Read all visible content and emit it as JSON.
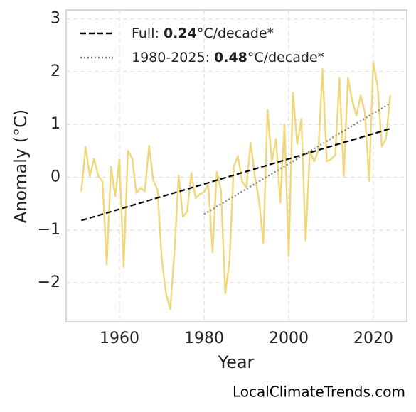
{
  "chart_data": {
    "type": "line",
    "xlabel": "Year",
    "ylabel": "Anomaly (°C)",
    "annotation": "LocalClimateTrends.com",
    "xlim": [
      1947.4,
      2027.9
    ],
    "ylim": [
      -2.74,
      3.17
    ],
    "xticks": [
      1960,
      1980,
      2000,
      2020
    ],
    "yticks": [
      {
        "value": -2,
        "label": "−2"
      },
      {
        "value": -1,
        "label": "−1"
      },
      0,
      1,
      2,
      3
    ],
    "grid": true,
    "legend": "upper left",
    "series": [
      {
        "color": "#f0d77a",
        "style": "solid",
        "x": [
          1951,
          1952,
          1953,
          1954,
          1955,
          1956,
          1957,
          1958,
          1959,
          1960,
          1961,
          1962,
          1963,
          1964,
          1965,
          1966,
          1967,
          1968,
          1969,
          1970,
          1971,
          1972,
          1973,
          1974,
          1975,
          1976,
          1977,
          1978,
          1979,
          1980,
          1981,
          1982,
          1983,
          1984,
          1985,
          1986,
          1987,
          1988,
          1989,
          1990,
          1991,
          1992,
          1993,
          1994,
          1995,
          1996,
          1997,
          1998,
          1999,
          2000,
          2001,
          2002,
          2003,
          2004,
          2005,
          2006,
          2007,
          2008,
          2009,
          2010,
          2011,
          2012,
          2013,
          2014,
          2015,
          2016,
          2017,
          2018,
          2019,
          2020,
          2021,
          2022,
          2023,
          2024
        ],
        "values": [
          -0.27,
          0.57,
          0.02,
          0.35,
          0.02,
          -0.08,
          -1.65,
          0.2,
          -0.36,
          0.34,
          -1.7,
          0.5,
          0.36,
          -0.3,
          -0.2,
          -0.27,
          0.6,
          -0.06,
          -0.24,
          -1.55,
          -2.2,
          -2.5,
          -1.42,
          0.03,
          -0.75,
          -0.65,
          0.08,
          -0.4,
          -0.32,
          -0.28,
          -0.14,
          -1.42,
          0.1,
          -0.25,
          -2.2,
          -1.6,
          0.2,
          0.4,
          -0.08,
          -0.2,
          0.65,
          0.02,
          -0.45,
          -1.25,
          1.28,
          0.3,
          0.72,
          -0.48,
          1.0,
          -1.5,
          1.6,
          0.63,
          1.1,
          -1.2,
          0.5,
          0.3,
          0.5,
          2.05,
          0.3,
          0.34,
          0.42,
          1.88,
          0.02,
          1.88,
          1.45,
          1.17,
          1.55,
          1.23,
          -0.07,
          2.18,
          1.73,
          0.58,
          0.73,
          1.55
        ]
      },
      {
        "name": "Full: 0.24°C/decade*",
        "bold": "0.24",
        "color": "#000000",
        "style": "dashed",
        "x": [
          1951,
          2024
        ],
        "values": [
          -0.82,
          0.92
        ]
      },
      {
        "name": "1980-2025: 0.48°C/decade*",
        "bold": "0.48",
        "color": "#808080",
        "style": "dotted",
        "x": [
          1980,
          2024
        ],
        "values": [
          -0.7,
          1.4
        ]
      }
    ]
  }
}
